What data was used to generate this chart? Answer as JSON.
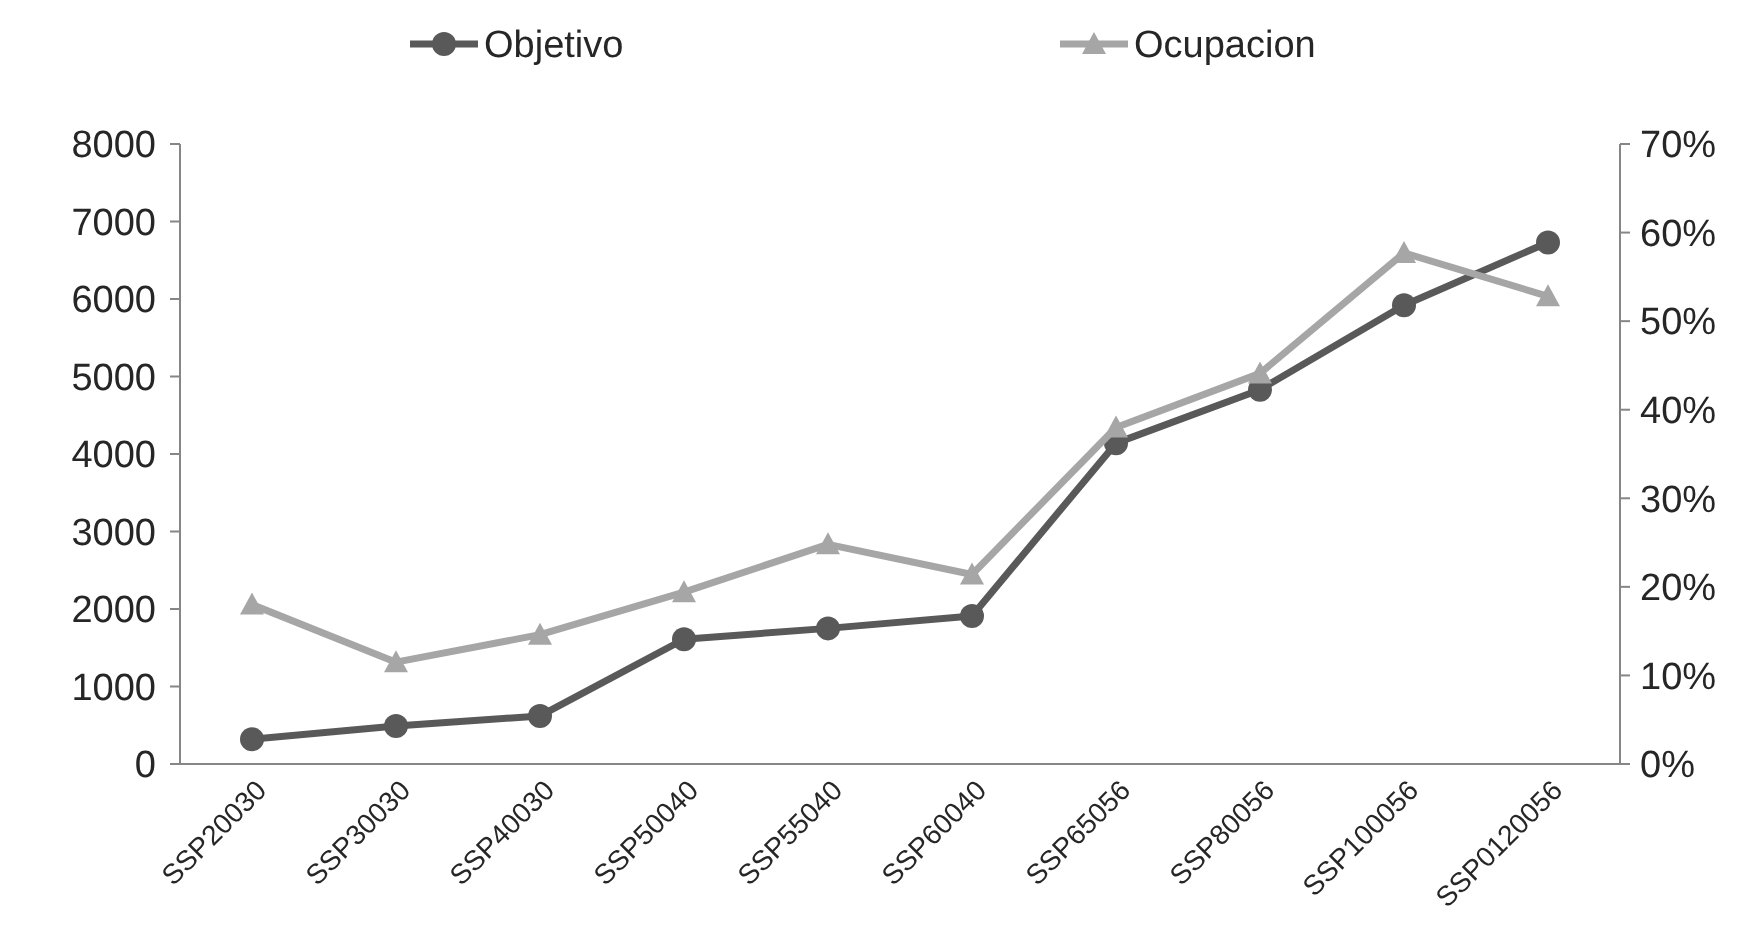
{
  "chart_data": {
    "type": "line",
    "categories": [
      "SSP20030",
      "SSP30030",
      "SSP40030",
      "SSP50040",
      "SSP55040",
      "SSP60040",
      "SSP65056",
      "SSP80056",
      "SSP100056",
      "SSP0120056"
    ],
    "series": [
      {
        "name": "Objetivo",
        "color": "#595959",
        "marker": "circle",
        "values": [
          320,
          490,
          620,
          1610,
          1750,
          1910,
          4140,
          4830,
          5920,
          6730
        ]
      },
      {
        "name": "Ocupacion",
        "color": "#a6a6a6",
        "marker": "triangle",
        "axis": "y2",
        "values": [
          18.0,
          11.5,
          14.6,
          19.4,
          24.8,
          21.4,
          38.0,
          44.1,
          57.7,
          52.8
        ]
      }
    ],
    "ylim": [
      0,
      8000
    ],
    "yticks": [
      0,
      1000,
      2000,
      3000,
      4000,
      5000,
      6000,
      7000,
      8000
    ],
    "y2lim": [
      0,
      70
    ],
    "y2ticks": [
      {
        "value": 0,
        "label": "0%"
      },
      {
        "value": 10,
        "label": "10%"
      },
      {
        "value": 20,
        "label": "20%"
      },
      {
        "value": 30,
        "label": "30%"
      },
      {
        "value": 40,
        "label": "40%"
      },
      {
        "value": 50,
        "label": "50%"
      },
      {
        "value": 60,
        "label": "60%"
      },
      {
        "value": 70,
        "label": "70%"
      }
    ],
    "grid": false,
    "legend": "top",
    "line_style": "solid"
  }
}
